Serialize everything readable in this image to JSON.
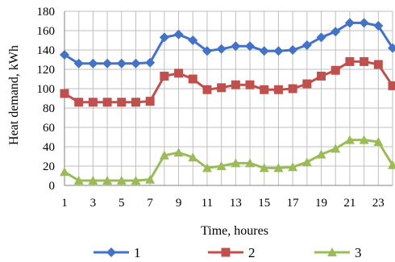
{
  "chart_data": {
    "type": "line",
    "xlabel": "Time, houres",
    "ylabel": "Heat demand, kWh",
    "xlim": [
      1,
      24
    ],
    "ylim": [
      0,
      180
    ],
    "x": [
      1,
      2,
      3,
      4,
      5,
      6,
      7,
      8,
      9,
      10,
      11,
      12,
      13,
      14,
      15,
      16,
      17,
      18,
      19,
      20,
      21,
      22,
      23,
      24
    ],
    "x_tick_labels": [
      "1",
      "3",
      "5",
      "7",
      "9",
      "11",
      "13",
      "15",
      "17",
      "19",
      "21",
      "23"
    ],
    "y_ticks": [
      0,
      20,
      40,
      60,
      80,
      100,
      120,
      140,
      160,
      180
    ],
    "grid": true,
    "legend_position": "bottom",
    "series": [
      {
        "name": "1",
        "color": "#4472C4",
        "marker": "diamond",
        "values": [
          135,
          126,
          126,
          126,
          126,
          126,
          127,
          153,
          156,
          150,
          139,
          141,
          144,
          144,
          139,
          139,
          140,
          145,
          153,
          159,
          168,
          168,
          165,
          142
        ]
      },
      {
        "name": "2",
        "color": "#C0504D",
        "marker": "square",
        "values": [
          95,
          86,
          86,
          86,
          86,
          86,
          87,
          113,
          116,
          110,
          99,
          101,
          104,
          104,
          99,
          99,
          100,
          105,
          113,
          119,
          128,
          128,
          125,
          103
        ]
      },
      {
        "name": "3",
        "color": "#9BBB59",
        "marker": "triangle",
        "values": [
          14,
          5,
          5,
          5,
          5,
          5,
          6,
          31,
          34,
          29,
          18,
          20,
          23,
          23,
          18,
          18,
          19,
          24,
          32,
          38,
          47,
          47,
          45,
          21
        ]
      }
    ]
  }
}
